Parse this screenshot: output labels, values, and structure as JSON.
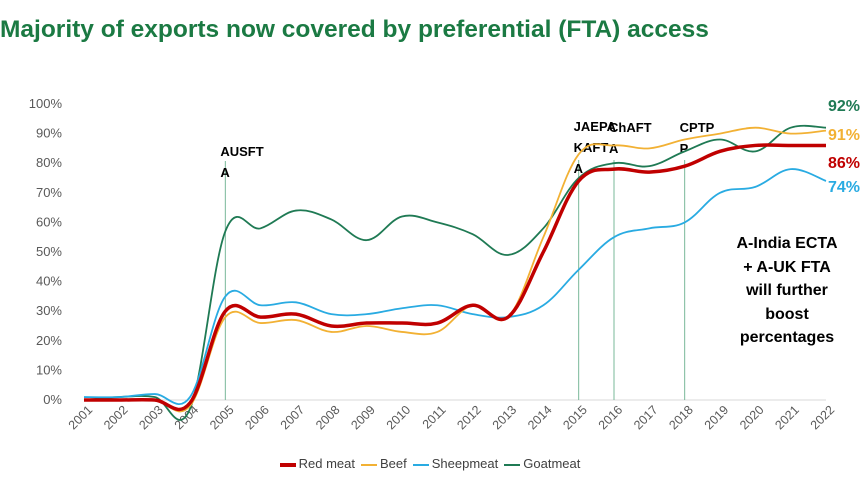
{
  "title": "Majority of exports now covered by preferential (FTA) access",
  "note": "A-India ECTA\n+ A-UK FTA\nwill further\nboost\npercentages",
  "chart_data": {
    "type": "line",
    "title": "Majority of exports now covered by preferential (FTA) access",
    "xlabel": "",
    "ylabel": "",
    "categories": [
      "2001",
      "2002",
      "2003",
      "2004",
      "2005",
      "2006",
      "2007",
      "2008",
      "2009",
      "2010",
      "2011",
      "2012",
      "2013",
      "2014",
      "2015",
      "2016",
      "2017",
      "2018",
      "2019",
      "2020",
      "2021",
      "2022"
    ],
    "ylim": [
      0,
      100
    ],
    "yticks": [
      "0%",
      "10%",
      "20%",
      "30%",
      "40%",
      "50%",
      "60%",
      "70%",
      "80%",
      "90%",
      "100%"
    ],
    "grid": false,
    "legend": "bottom",
    "series": [
      {
        "name": "Red meat",
        "color": "#c00000",
        "values": [
          0,
          0,
          0,
          -1,
          30,
          28,
          29,
          25,
          26,
          26,
          26,
          32,
          28,
          50,
          74,
          78,
          77,
          79,
          84,
          86,
          86,
          86
        ],
        "end_label": "86%"
      },
      {
        "name": "Beef",
        "color": "#f2b134",
        "values": [
          0,
          0,
          0,
          -2,
          28,
          26,
          27,
          23,
          25,
          23,
          23,
          32,
          28,
          55,
          83,
          86,
          85,
          88,
          90,
          92,
          90,
          91
        ],
        "end_label": "91%"
      },
      {
        "name": "Sheepmeat",
        "color": "#29abe2",
        "values": [
          1,
          1,
          2,
          1,
          35,
          32,
          33,
          29,
          29,
          31,
          32,
          29,
          28,
          32,
          44,
          55,
          58,
          60,
          70,
          72,
          78,
          74
        ],
        "end_label": "74%"
      },
      {
        "name": "Goatmeat",
        "color": "#1f7a54",
        "values": [
          0,
          1,
          1,
          -3,
          57,
          58,
          64,
          61,
          54,
          62,
          60,
          56,
          49,
          58,
          75,
          80,
          79,
          84,
          88,
          84,
          92,
          92
        ],
        "end_label": "92%"
      }
    ],
    "annotations": [
      {
        "year": "2005",
        "label_lines": [
          "AUSFT",
          "A"
        ]
      },
      {
        "year": "2015",
        "label_lines": [
          "JAEPA",
          "KAFT",
          "A"
        ]
      },
      {
        "year": "2016",
        "label_lines": [
          "ChAFT",
          "A"
        ]
      },
      {
        "year": "2018",
        "label_lines": [
          "CPTP",
          "P"
        ]
      }
    ]
  }
}
